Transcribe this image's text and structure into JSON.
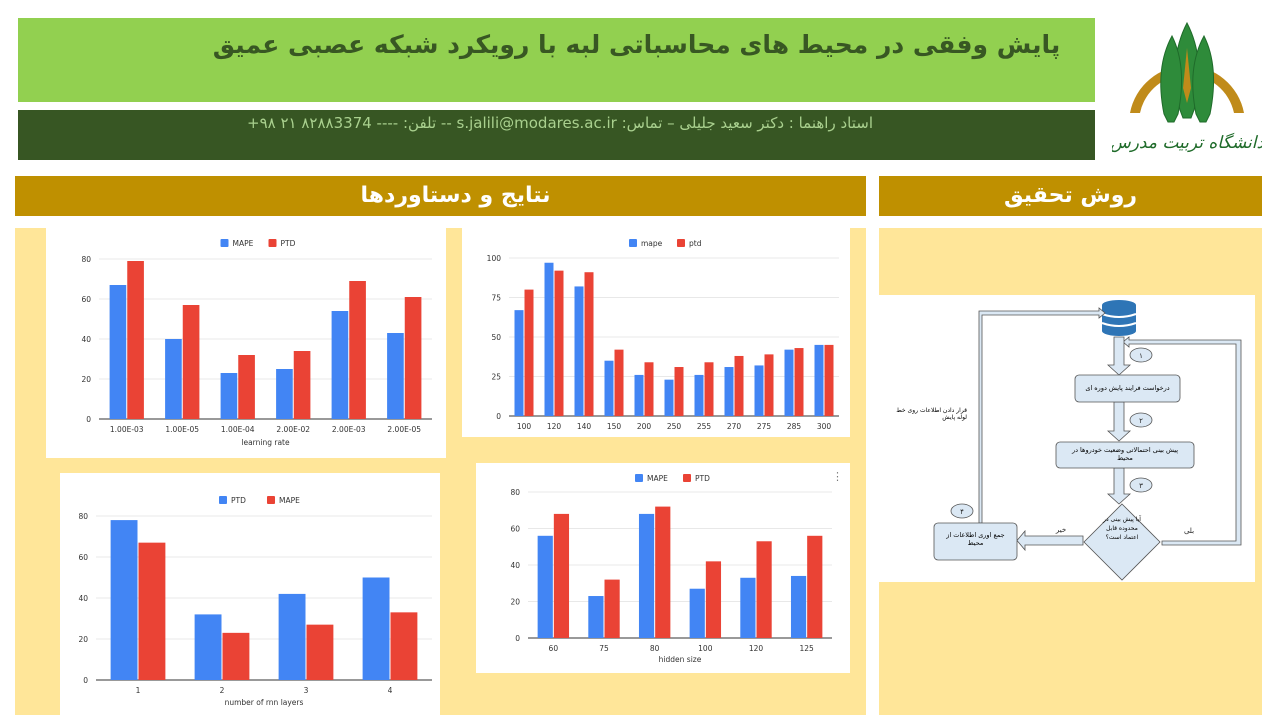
{
  "header": {
    "title": "پایش وفقی در محیط های محاسباتی لبه با رویکرد شبکه عصبی عمیق",
    "advisor_line": "استاد راهنما : دکتر سعید جلیلی – تماس: s.jalili@modares.ac.ir -- تلفن: ---- ۸۲۸۸3374 ۲۱ ۹۸+",
    "logo_text": "دانشگاه تربیت مدرس"
  },
  "sections": {
    "results_title": "نتایج و دستاوردها",
    "method_title": "روش تحقیق"
  },
  "colors": {
    "blue": "#4285f4",
    "red": "#ea4335",
    "title_green": "#92d050",
    "dark_green": "#375623",
    "gold": "#bf9000",
    "panel": "#ffe699"
  },
  "chart_data": [
    {
      "type": "bar",
      "categories": [
        "1.00E-03",
        "1.00E-05",
        "1.00E-04",
        "2.00E-02",
        "2.00E-03",
        "2.00E-05"
      ],
      "series": [
        {
          "name": "MAPE",
          "color": "#4285f4",
          "values": [
            67,
            40,
            23,
            25,
            54,
            43
          ]
        },
        {
          "name": "PTD",
          "color": "#ea4335",
          "values": [
            79,
            57,
            32,
            34,
            69,
            61
          ]
        }
      ],
      "xlabel": "learning rate",
      "ylabel": "",
      "ylim": [
        0,
        80
      ],
      "yticks": [
        0,
        20,
        40,
        60,
        80
      ],
      "grid": true,
      "legend": "top"
    },
    {
      "type": "bar",
      "categories": [
        "100",
        "120",
        "140",
        "150",
        "200",
        "250",
        "255",
        "270",
        "275",
        "285",
        "300"
      ],
      "series": [
        {
          "name": "mape",
          "color": "#4285f4",
          "values": [
            67,
            97,
            82,
            35,
            26,
            23,
            26,
            31,
            32,
            42,
            45
          ]
        },
        {
          "name": "ptd",
          "color": "#ea4335",
          "values": [
            80,
            92,
            91,
            42,
            34,
            31,
            34,
            38,
            39,
            43,
            45
          ]
        }
      ],
      "xlabel": "",
      "ylabel": "",
      "ylim": [
        0,
        100
      ],
      "yticks": [
        0,
        25,
        50,
        75,
        100
      ],
      "grid": true,
      "legend": "top"
    },
    {
      "type": "bar",
      "categories": [
        "1",
        "2",
        "3",
        "4"
      ],
      "series": [
        {
          "name": "PTD",
          "color": "#4285f4",
          "values": [
            78,
            32,
            42,
            50
          ]
        },
        {
          "name": "MAPE",
          "color": "#ea4335",
          "values": [
            67,
            23,
            27,
            33
          ]
        }
      ],
      "xlabel": "number of rnn layers",
      "ylabel": "",
      "ylim": [
        0,
        80
      ],
      "yticks": [
        0,
        20,
        40,
        60,
        80
      ],
      "grid": true,
      "legend": "top"
    },
    {
      "type": "bar",
      "categories": [
        "60",
        "75",
        "80",
        "100",
        "120",
        "125"
      ],
      "series": [
        {
          "name": "MAPE",
          "color": "#4285f4",
          "values": [
            56,
            23,
            68,
            27,
            33,
            34
          ]
        },
        {
          "name": "PTD",
          "color": "#ea4335",
          "values": [
            68,
            32,
            72,
            42,
            53,
            56
          ]
        }
      ],
      "xlabel": "hidden size",
      "ylabel": "",
      "ylim": [
        0,
        80
      ],
      "yticks": [
        0,
        20,
        40,
        60,
        80
      ],
      "grid": true,
      "legend": "top"
    }
  ],
  "flowchart": {
    "step1": "درخواست فرایند پایش دوره ای",
    "step2": "پیش بینی احتمالاتی وضعیت خودروها در محیط",
    "decision": "آیا پیش بینی در محدوده قابل اعتماد است؟",
    "step4": "جمع اوری اطلاعات از محیط",
    "side_note": "قرار دادن اطلاعات روی خط لوله پایش",
    "yes": "بلی",
    "no": "خیر",
    "n1": "۱",
    "n2": "۲",
    "n3": "۳",
    "n4": "۴"
  }
}
